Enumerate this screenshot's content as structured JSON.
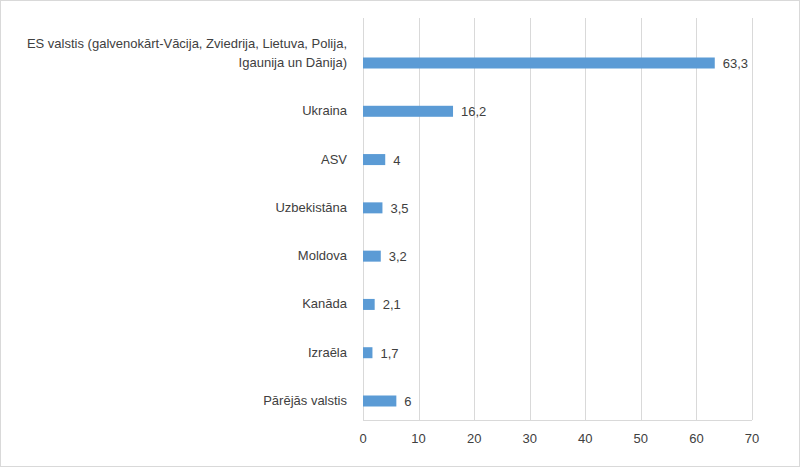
{
  "chart_data": {
    "type": "bar",
    "orientation": "horizontal",
    "categories": [
      "ES valstis (galvenokārt-Vācija, Zviedrija, Lietuva, Polija, Igaunija un Dānija)",
      "Ukraina",
      "ASV",
      "Uzbekistāna",
      "Moldova",
      "Kanāda",
      "Izraēla",
      "Pārējās valstis"
    ],
    "values": [
      63.3,
      16.2,
      4,
      3.5,
      3.2,
      2.1,
      1.7,
      6
    ],
    "value_labels": [
      "63,3",
      "16,2",
      "4",
      "3,5",
      "3,2",
      "2,1",
      "1,7",
      "6"
    ],
    "data_labels": true,
    "color": "#5b9bd5",
    "xlim": [
      0,
      70
    ],
    "xticks": [
      0,
      10,
      20,
      30,
      40,
      50,
      60,
      70
    ],
    "grid": true
  }
}
